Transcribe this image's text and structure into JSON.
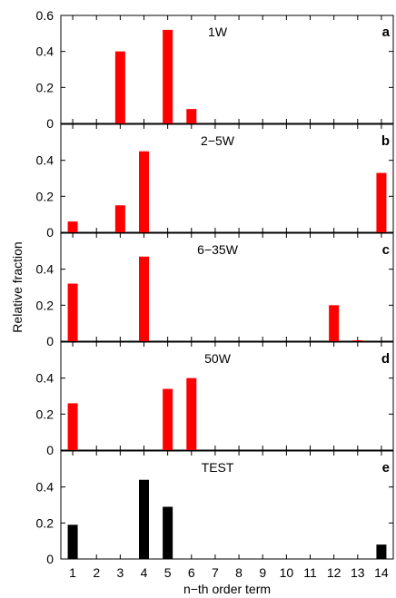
{
  "chart_data": [
    {
      "type": "bar",
      "title": "1W",
      "panel_letter": "a",
      "color": "#ff0000",
      "ylim": [
        0,
        0.6
      ],
      "yticks": [
        "0",
        "0.2",
        "0.4",
        "0.6"
      ],
      "points": [
        {
          "x": 3,
          "y": 0.4
        },
        {
          "x": 5,
          "y": 0.52
        },
        {
          "x": 6,
          "y": 0.08
        }
      ]
    },
    {
      "type": "bar",
      "title": "2−5W",
      "panel_letter": "b",
      "color": "#ff0000",
      "ylim": [
        0,
        0.6
      ],
      "yticks": [
        "0",
        "0.2",
        "0.4"
      ],
      "points": [
        {
          "x": 1,
          "y": 0.06
        },
        {
          "x": 3,
          "y": 0.15
        },
        {
          "x": 4,
          "y": 0.45
        },
        {
          "x": 14,
          "y": 0.33
        }
      ]
    },
    {
      "type": "bar",
      "title": "6−35W",
      "panel_letter": "c",
      "color": "#ff0000",
      "ylim": [
        0,
        0.6
      ],
      "yticks": [
        "0",
        "0.2",
        "0.4"
      ],
      "points": [
        {
          "x": 1,
          "y": 0.32
        },
        {
          "x": 4,
          "y": 0.47
        },
        {
          "x": 12,
          "y": 0.2
        },
        {
          "x": 13,
          "y": 0.005
        }
      ]
    },
    {
      "type": "bar",
      "title": "50W",
      "panel_letter": "d",
      "color": "#ff0000",
      "ylim": [
        0,
        0.6
      ],
      "yticks": [
        "0",
        "0.2",
        "0.4"
      ],
      "points": [
        {
          "x": 1,
          "y": 0.26
        },
        {
          "x": 5,
          "y": 0.34
        },
        {
          "x": 6,
          "y": 0.4
        }
      ]
    },
    {
      "type": "bar",
      "title": "TEST",
      "panel_letter": "e",
      "color": "#000000",
      "ylim": [
        0,
        0.6
      ],
      "yticks": [
        "0",
        "0.2",
        "0.4"
      ],
      "points": [
        {
          "x": 1,
          "y": 0.19
        },
        {
          "x": 4,
          "y": 0.44
        },
        {
          "x": 5,
          "y": 0.29
        },
        {
          "x": 14,
          "y": 0.08
        }
      ]
    }
  ],
  "shared": {
    "xlabel": "n−th order term",
    "ylabel": "Relative fraction",
    "xticks": [
      "1",
      "2",
      "3",
      "4",
      "5",
      "6",
      "7",
      "8",
      "9",
      "10",
      "11",
      "12",
      "13",
      "14"
    ],
    "xlim": [
      0.5,
      14.5
    ]
  }
}
